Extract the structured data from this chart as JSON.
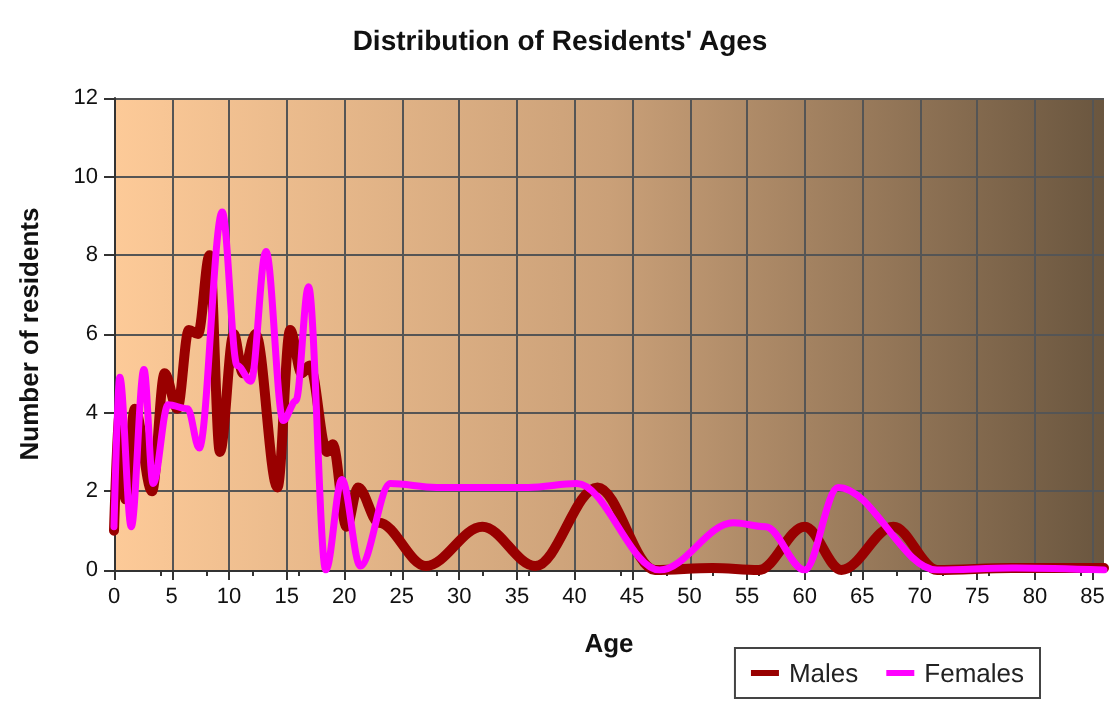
{
  "chart_data": {
    "type": "line",
    "title": "Distribution of Residents' Ages",
    "xlabel": "Age",
    "ylabel": "Number of residents",
    "xlim": [
      0,
      86
    ],
    "xticks": [
      0,
      5,
      10,
      15,
      20,
      25,
      30,
      35,
      40,
      45,
      50,
      55,
      60,
      65,
      70,
      75,
      80,
      85
    ],
    "ylim": [
      0,
      12
    ],
    "yticks": [
      0,
      2,
      4,
      6,
      8,
      10,
      12
    ],
    "grid": true,
    "legend": "bottom right",
    "marker": "none",
    "line_style": "solid",
    "series": [
      {
        "name": "Males",
        "color": "#990000",
        "x": [
          0,
          0.5,
          1,
          1.8,
          3.3,
          4.4,
          5.5,
          6.5,
          7.3,
          8.3,
          9.2,
          10.4,
          11.2,
          12.3,
          14.2,
          15.3,
          16.3,
          17,
          18.5,
          19,
          20.2,
          21.2,
          23,
          27.1,
          32,
          36.6,
          42,
          47,
          52,
          56,
          60,
          63.2,
          67.7,
          71.5,
          78,
          86
        ],
        "values": [
          1,
          4,
          1.8,
          4.1,
          2,
          5,
          4.1,
          6.1,
          6,
          8,
          3,
          6,
          5,
          6,
          2.1,
          6.1,
          5,
          5.2,
          3,
          3.2,
          1.1,
          2.1,
          1.2,
          0.1,
          1.1,
          0.1,
          2.1,
          0,
          0.05,
          0,
          1.1,
          0,
          1.1,
          0,
          0.05,
          0.05
        ]
      },
      {
        "name": "Females",
        "color": "#ff00ff",
        "x": [
          0,
          0.5,
          1.5,
          2.6,
          3.4,
          4.7,
          6.4,
          7.4,
          9.4,
          10.7,
          11.9,
          13.2,
          14.7,
          15.8,
          16.9,
          18.4,
          19.8,
          21.4,
          24,
          28,
          36,
          40.2,
          47.4,
          53.8,
          56.6,
          60,
          62.9,
          71.5,
          78,
          86
        ],
        "values": [
          1.1,
          4.9,
          1.1,
          5.1,
          2.2,
          4.2,
          4.1,
          3.1,
          9.1,
          5.2,
          4.8,
          8.1,
          3.8,
          4.3,
          7.2,
          0,
          2.3,
          0.1,
          2.2,
          2.1,
          2.1,
          2.2,
          0,
          1.2,
          1.1,
          0,
          2.1,
          0,
          0.05,
          0
        ]
      }
    ]
  }
}
